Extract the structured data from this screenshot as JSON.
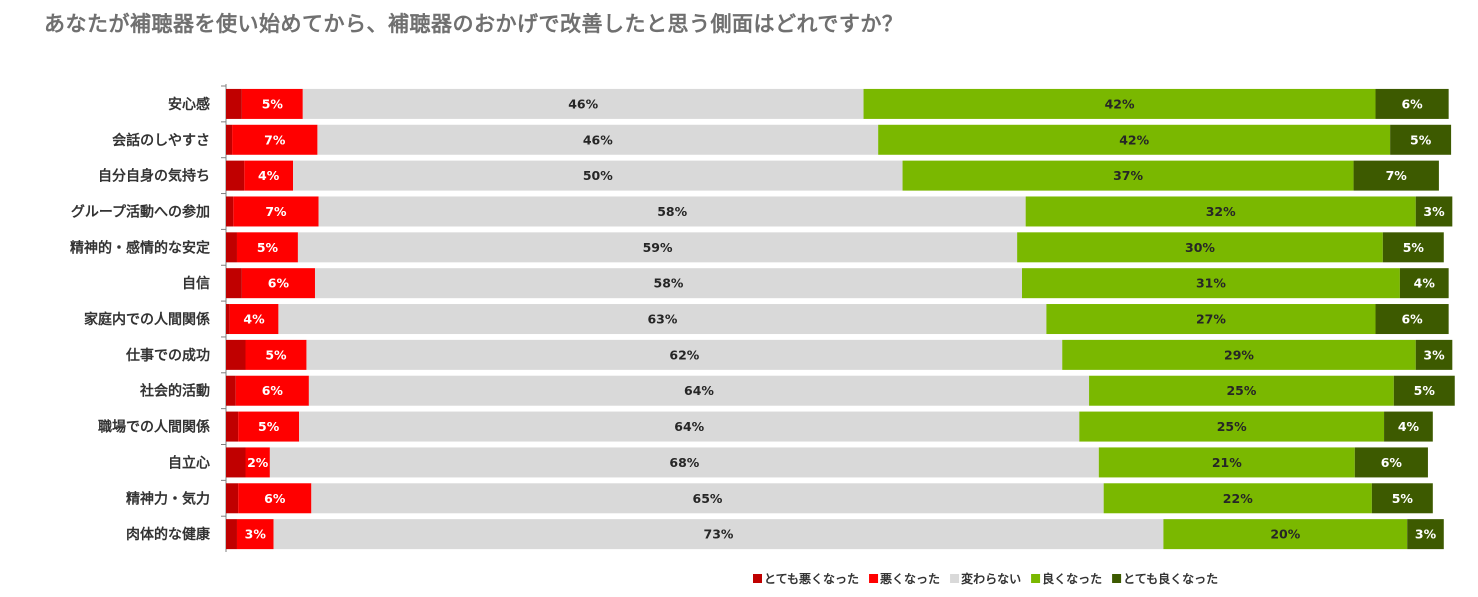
{
  "chart_data": {
    "type": "bar",
    "orientation": "horizontal",
    "stacked": "100%",
    "title": "あなたが補聴器を使い始めてから、補聴器のおかげで改善したと思う側面はどれですか？",
    "categories": [
      "安心感",
      "会話のしやすさ",
      "自分自身の気持ち",
      "グループ活動への参加",
      "精神的・感情的な安定",
      "自信",
      "家庭内での人間関係",
      "仕事での成功",
      "社会的活動",
      "職場での人間関係",
      "自立心",
      "精神力・気力",
      "肉体的な健康"
    ],
    "series": [
      {
        "name": "とても悪くなった",
        "color": "#c00000",
        "label_color": "#ffffff",
        "show_labels": false,
        "values": [
          1.3,
          0.5,
          1.5,
          0.6,
          0.9,
          1.3,
          0.3,
          1.6,
          0.8,
          1.0,
          1.6,
          1.0,
          0.9
        ]
      },
      {
        "name": "悪くなった",
        "color": "#ff0000",
        "label_color": "#ffffff",
        "show_labels": true,
        "values": [
          5,
          7,
          4,
          7,
          5,
          6,
          4,
          5,
          6,
          5,
          2,
          6,
          3
        ]
      },
      {
        "name": "変わらない",
        "color": "#d9d9d9",
        "label_color": "#262626",
        "show_labels": true,
        "values": [
          46,
          46,
          50,
          58,
          59,
          58,
          63,
          62,
          64,
          64,
          68,
          65,
          73
        ]
      },
      {
        "name": "良くなった",
        "color": "#7ab800",
        "label_color": "#262626",
        "show_labels": true,
        "values": [
          42,
          42,
          37,
          32,
          30,
          31,
          27,
          29,
          25,
          25,
          21,
          22,
          20
        ]
      },
      {
        "name": "とても良くなった",
        "color": "#3d5a00",
        "label_color": "#ffffff",
        "show_labels": true,
        "values": [
          6,
          5,
          7,
          3,
          5,
          4,
          6,
          3,
          5,
          4,
          6,
          5,
          3
        ]
      }
    ],
    "xlim": [
      0,
      100
    ],
    "legend_position": "bottom-right",
    "grid": false
  }
}
